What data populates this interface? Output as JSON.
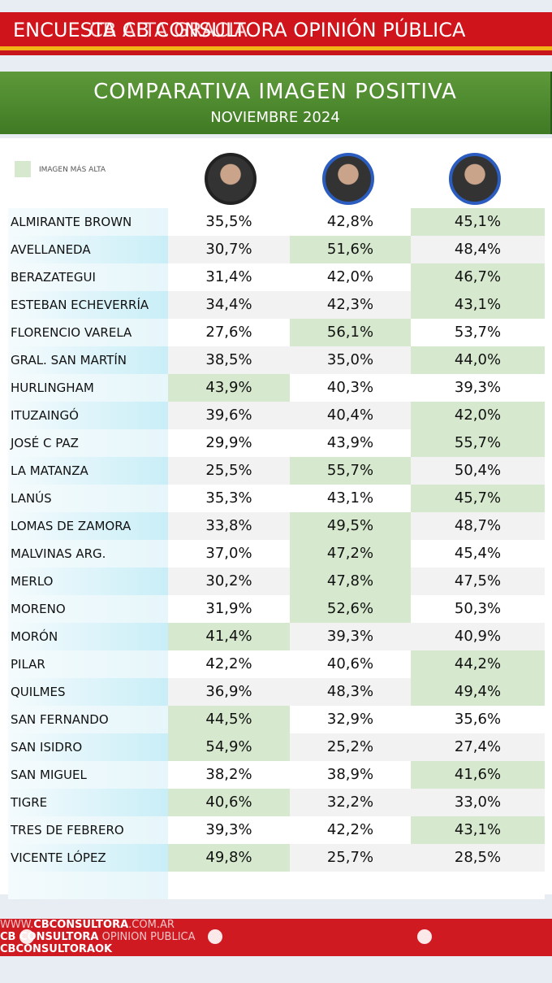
{
  "header": {
    "text": "ENCUESTA CB CONSULTORA OPINIÓN PÚBLICA",
    "overlay": "CB ALTA GRACIA"
  },
  "banner": {
    "title": "COMPARATIVA IMAGEN POSITIVA",
    "subtitle": "NOVIEMBRE 2024"
  },
  "legend": {
    "label": "IMAGEN MÁS ALTA",
    "color": "#d6e9cf"
  },
  "table": {
    "rows": [
      [
        "ALMIRANTE BROWN",
        "35,5%",
        "42,8%",
        "45,1%"
      ],
      [
        "AVELLANEDA",
        "30,7%",
        "51,6%",
        "48,4%"
      ],
      [
        "BERAZATEGUI",
        "31,4%",
        "42,0%",
        "46,7%"
      ],
      [
        "ESTEBAN ECHEVERRÍA",
        "34,4%",
        "42,3%",
        "43,1%"
      ],
      [
        "FLORENCIO VARELA",
        "27,6%",
        "56,1%",
        "53,7%"
      ],
      [
        "GRAL. SAN MARTÍN",
        "38,5%",
        "35,0%",
        "44,0%"
      ],
      [
        "HURLINGHAM",
        "43,9%",
        "40,3%",
        "39,3%"
      ],
      [
        "ITUZAINGÓ",
        "39,6%",
        "40,4%",
        "42,0%"
      ],
      [
        "JOSÉ C PAZ",
        "29,9%",
        "43,9%",
        "55,7%"
      ],
      [
        "LA MATANZA",
        "25,5%",
        "55,7%",
        "50,4%"
      ],
      [
        "LANÚS",
        "35,3%",
        "43,1%",
        "45,7%"
      ],
      [
        "LOMAS DE ZAMORA",
        "33,8%",
        "49,5%",
        "48,7%"
      ],
      [
        "MALVINAS ARG.",
        "37,0%",
        "47,2%",
        "45,4%"
      ],
      [
        "MERLO",
        "30,2%",
        "47,8%",
        "47,5%"
      ],
      [
        "MORENO",
        "31,9%",
        "52,6%",
        "50,3%"
      ],
      [
        "MORÓN",
        "41,4%",
        "39,3%",
        "40,9%"
      ],
      [
        "PILAR",
        "42,2%",
        "40,6%",
        "44,2%"
      ],
      [
        "QUILMES",
        "36,9%",
        "48,3%",
        "49,4%"
      ],
      [
        "SAN FERNANDO",
        "44,5%",
        "32,9%",
        "35,6%"
      ],
      [
        "SAN ISIDRO",
        "54,9%",
        "25,2%",
        "27,4%"
      ],
      [
        "SAN MIGUEL",
        "38,2%",
        "38,9%",
        "41,6%"
      ],
      [
        "TIGRE",
        "40,6%",
        "32,2%",
        "33,0%"
      ],
      [
        "TRES DE FEBRERO",
        "39,3%",
        "42,2%",
        "43,1%"
      ],
      [
        "VICENTE LÓPEZ",
        "49,8%",
        "25,7%",
        "28,5%"
      ]
    ]
  },
  "footer": {
    "items": [
      [
        "WWW.",
        "CBCONSULTORA",
        ".COM.AR"
      ],
      [
        "",
        "CB CONSULTORA",
        " OPINION PUBLICA"
      ],
      [
        "",
        "CBCONSULTORAOK",
        ""
      ]
    ]
  }
}
